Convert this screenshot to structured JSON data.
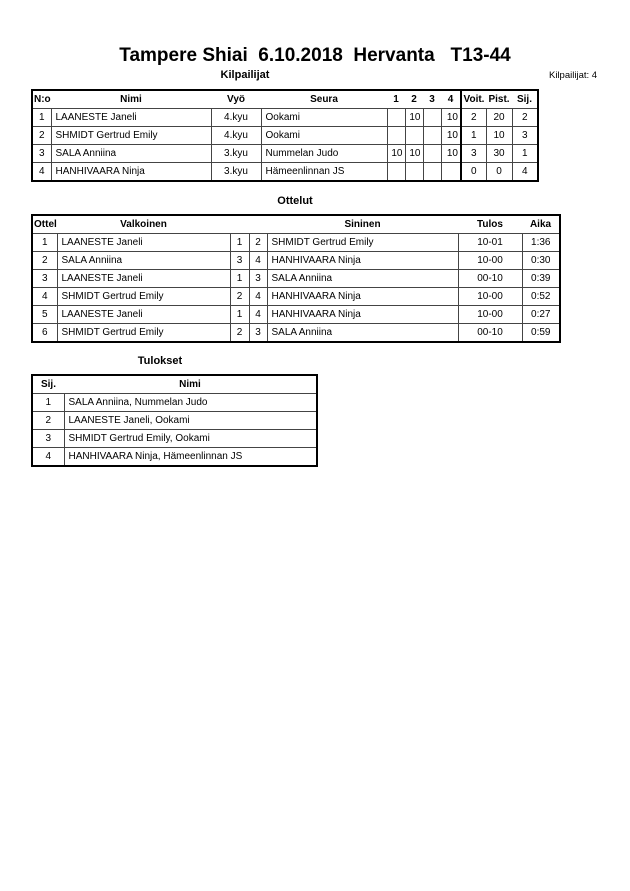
{
  "title": "Tampere Shiai  6.10.2018  Hervanta   T13-44",
  "competitors": {
    "heading": "Kilpailijat",
    "count_label": "Kilpailijat: 4",
    "headers": [
      "N:o",
      "Nimi",
      "Vyö",
      "Seura",
      "1",
      "2",
      "3",
      "4",
      "Voit.",
      "Pist.",
      "Sij."
    ],
    "rows": [
      {
        "no": "1",
        "name": "LAANESTE Janeli",
        "belt": "4.kyu",
        "club": "Ookami",
        "s1": "",
        "s2": "10",
        "s3": "",
        "s4": "10",
        "wins": "2",
        "points": "20",
        "place": "2"
      },
      {
        "no": "2",
        "name": "SHMIDT Gertrud Emily",
        "belt": "4.kyu",
        "club": "Ookami",
        "s1": "",
        "s2": "",
        "s3": "",
        "s4": "10",
        "wins": "1",
        "points": "10",
        "place": "3"
      },
      {
        "no": "3",
        "name": "SALA Anniina",
        "belt": "3.kyu",
        "club": "Nummelan Judo",
        "s1": "10",
        "s2": "10",
        "s3": "",
        "s4": "10",
        "wins": "3",
        "points": "30",
        "place": "1"
      },
      {
        "no": "4",
        "name": "HANHIVAARA Ninja",
        "belt": "3.kyu",
        "club": "Hämeenlinnan JS",
        "s1": "",
        "s2": "",
        "s3": "",
        "s4": "",
        "wins": "0",
        "points": "0",
        "place": "4"
      }
    ]
  },
  "matches": {
    "heading": "Ottelut",
    "headers": [
      "Ottelu",
      "Valkoinen",
      "Sininen",
      "Tulos",
      "Aika"
    ],
    "rows": [
      {
        "no": "1",
        "white": "LAANESTE Janeli",
        "wn": "1",
        "bn": "2",
        "blue": "SHMIDT Gertrud Emily",
        "result": "10-01",
        "time": "1:36"
      },
      {
        "no": "2",
        "white": "SALA Anniina",
        "wn": "3",
        "bn": "4",
        "blue": "HANHIVAARA Ninja",
        "result": "10-00",
        "time": "0:30"
      },
      {
        "no": "3",
        "white": "LAANESTE Janeli",
        "wn": "1",
        "bn": "3",
        "blue": "SALA Anniina",
        "result": "00-10",
        "time": "0:39"
      },
      {
        "no": "4",
        "white": "SHMIDT Gertrud Emily",
        "wn": "2",
        "bn": "4",
        "blue": "HANHIVAARA Ninja",
        "result": "10-00",
        "time": "0:52"
      },
      {
        "no": "5",
        "white": "LAANESTE Janeli",
        "wn": "1",
        "bn": "4",
        "blue": "HANHIVAARA Ninja",
        "result": "10-00",
        "time": "0:27"
      },
      {
        "no": "6",
        "white": "SHMIDT Gertrud Emily",
        "wn": "2",
        "bn": "3",
        "blue": "SALA Anniina",
        "result": "00-10",
        "time": "0:59"
      }
    ]
  },
  "results": {
    "heading": "Tulokset",
    "headers": [
      "Sij.",
      "Nimi"
    ],
    "rows": [
      {
        "place": "1",
        "name": "SALA Anniina, Nummelan Judo"
      },
      {
        "place": "2",
        "name": "LAANESTE Janeli, Ookami"
      },
      {
        "place": "3",
        "name": "SHMIDT Gertrud Emily, Ookami"
      },
      {
        "place": "4",
        "name": "HANHIVAARA Ninja, Hämeenlinnan JS"
      }
    ]
  }
}
